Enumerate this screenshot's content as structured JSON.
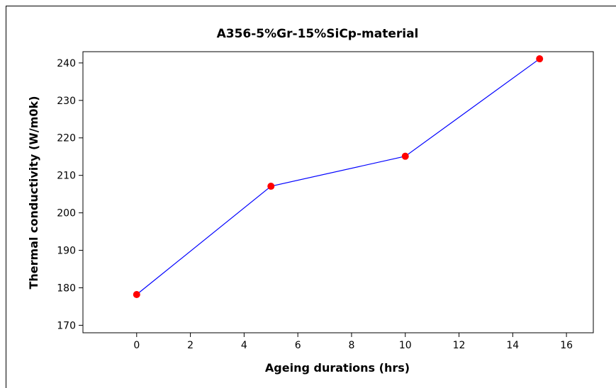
{
  "chart_data": {
    "type": "line",
    "title": "A356-5%Gr-15%SiCp-material",
    "xlabel": "Ageing durations (hrs)",
    "ylabel": "Thermal conductivity (W/m0k)",
    "xlim": [
      -2,
      17
    ],
    "ylim": [
      168,
      243
    ],
    "x_ticks": [
      0,
      2,
      4,
      6,
      8,
      10,
      12,
      14,
      16
    ],
    "y_ticks": [
      170,
      180,
      190,
      200,
      210,
      220,
      230,
      240
    ],
    "series": [
      {
        "x": [
          0,
          5,
          10,
          15
        ],
        "y": [
          178.2,
          207.1,
          215.1,
          241.1
        ]
      }
    ],
    "line_color": "#0000ff",
    "marker_color": "#ff0000",
    "grid": false,
    "legend": false
  }
}
